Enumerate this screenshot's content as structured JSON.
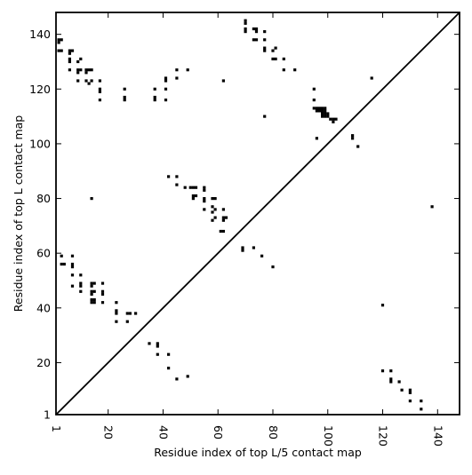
{
  "chart_data": {
    "type": "scatter",
    "title": "",
    "xlabel": "Residue index of top L/5 contact map",
    "ylabel": "Residue index of top L contact map",
    "xlim": [
      1,
      148
    ],
    "ylim": [
      1,
      148
    ],
    "xticks": [
      1,
      20,
      40,
      60,
      80,
      100,
      120,
      140
    ],
    "yticks": [
      1,
      20,
      40,
      60,
      80,
      100,
      120,
      140
    ],
    "grid": false,
    "diagonal": true,
    "colors": {
      "points": "#000000",
      "axes": "#000000",
      "background": "#ffffff"
    },
    "upper_points": [
      [
        2,
        137
      ],
      [
        2,
        138
      ],
      [
        3,
        138
      ],
      [
        2,
        134
      ],
      [
        3,
        134
      ],
      [
        6,
        134
      ],
      [
        7,
        134
      ],
      [
        6,
        133
      ],
      [
        6,
        131
      ],
      [
        6,
        130
      ],
      [
        6,
        127
      ],
      [
        9,
        130
      ],
      [
        10,
        131
      ],
      [
        9,
        127
      ],
      [
        10,
        127
      ],
      [
        9,
        126
      ],
      [
        9,
        123
      ],
      [
        12,
        127
      ],
      [
        13,
        127
      ],
      [
        14,
        127
      ],
      [
        12,
        126
      ],
      [
        12,
        123
      ],
      [
        13,
        122
      ],
      [
        14,
        123
      ],
      [
        17,
        123
      ],
      [
        17,
        120
      ],
      [
        17,
        119
      ],
      [
        17,
        116
      ],
      [
        26,
        120
      ],
      [
        26,
        117
      ],
      [
        26,
        116
      ],
      [
        37,
        120
      ],
      [
        37,
        117
      ],
      [
        37,
        116
      ],
      [
        41,
        124
      ],
      [
        41,
        123
      ],
      [
        41,
        120
      ],
      [
        41,
        116
      ],
      [
        45,
        127
      ],
      [
        45,
        124
      ],
      [
        49,
        127
      ],
      [
        62,
        123
      ],
      [
        70,
        145
      ],
      [
        70,
        144
      ],
      [
        70,
        142
      ],
      [
        70,
        141
      ],
      [
        73,
        142
      ],
      [
        74,
        142
      ],
      [
        74,
        141
      ],
      [
        73,
        138
      ],
      [
        74,
        138
      ],
      [
        77,
        141
      ],
      [
        77,
        138
      ],
      [
        77,
        135
      ],
      [
        77,
        134
      ],
      [
        81,
        135
      ],
      [
        80,
        134
      ],
      [
        80,
        131
      ],
      [
        81,
        131
      ],
      [
        84,
        131
      ],
      [
        84,
        127
      ],
      [
        88,
        127
      ],
      [
        77,
        110
      ],
      [
        95,
        120
      ],
      [
        95,
        116
      ],
      [
        95,
        113
      ],
      [
        96,
        113
      ],
      [
        97,
        113
      ],
      [
        98,
        113
      ],
      [
        99,
        113
      ],
      [
        96,
        112
      ],
      [
        97,
        112
      ],
      [
        98,
        112
      ],
      [
        99,
        112
      ],
      [
        98,
        111
      ],
      [
        99,
        111
      ],
      [
        98,
        110
      ],
      [
        99,
        110
      ],
      [
        100,
        111
      ],
      [
        100,
        110
      ],
      [
        101,
        109
      ],
      [
        102,
        109
      ],
      [
        103,
        109
      ],
      [
        102,
        108
      ],
      [
        96,
        102
      ],
      [
        109,
        103
      ],
      [
        109,
        102
      ],
      [
        111,
        99
      ],
      [
        116,
        124
      ]
    ],
    "lower_points": [
      [
        3,
        59
      ],
      [
        3,
        56
      ],
      [
        4,
        56
      ],
      [
        7,
        59
      ],
      [
        7,
        56
      ],
      [
        7,
        55
      ],
      [
        7,
        52
      ],
      [
        7,
        48
      ],
      [
        10,
        52
      ],
      [
        10,
        49
      ],
      [
        10,
        48
      ],
      [
        10,
        46
      ],
      [
        14,
        49
      ],
      [
        15,
        49
      ],
      [
        14,
        48
      ],
      [
        14,
        46
      ],
      [
        15,
        46
      ],
      [
        14,
        45
      ],
      [
        14,
        43
      ],
      [
        15,
        43
      ],
      [
        14,
        42
      ],
      [
        15,
        42
      ],
      [
        18,
        49
      ],
      [
        18,
        46
      ],
      [
        18,
        45
      ],
      [
        18,
        42
      ],
      [
        14,
        80
      ],
      [
        23,
        42
      ],
      [
        23,
        39
      ],
      [
        23,
        38
      ],
      [
        23,
        35
      ],
      [
        27,
        38
      ],
      [
        28,
        38
      ],
      [
        30,
        38
      ],
      [
        27,
        35
      ],
      [
        35,
        27
      ],
      [
        38,
        27
      ],
      [
        38,
        26
      ],
      [
        38,
        23
      ],
      [
        42,
        23
      ],
      [
        42,
        18
      ],
      [
        45,
        14
      ],
      [
        49,
        15
      ],
      [
        42,
        88
      ],
      [
        45,
        88
      ],
      [
        45,
        85
      ],
      [
        48,
        84
      ],
      [
        50,
        84
      ],
      [
        51,
        84
      ],
      [
        52,
        84
      ],
      [
        51,
        81
      ],
      [
        52,
        81
      ],
      [
        51,
        80
      ],
      [
        55,
        84
      ],
      [
        55,
        83
      ],
      [
        55,
        80
      ],
      [
        55,
        79
      ],
      [
        55,
        76
      ],
      [
        58,
        80
      ],
      [
        59,
        80
      ],
      [
        58,
        77
      ],
      [
        59,
        76
      ],
      [
        58,
        75
      ],
      [
        59,
        73
      ],
      [
        58,
        72
      ],
      [
        62,
        76
      ],
      [
        62,
        73
      ],
      [
        63,
        73
      ],
      [
        62,
        72
      ],
      [
        61,
        68
      ],
      [
        62,
        68
      ],
      [
        69,
        62
      ],
      [
        69,
        61
      ],
      [
        73,
        62
      ],
      [
        76,
        59
      ],
      [
        80,
        55
      ],
      [
        120,
        41
      ],
      [
        120,
        17
      ],
      [
        123,
        17
      ],
      [
        123,
        14
      ],
      [
        123,
        13
      ],
      [
        126,
        13
      ],
      [
        127,
        10
      ],
      [
        130,
        10
      ],
      [
        130,
        9
      ],
      [
        130,
        6
      ],
      [
        134,
        6
      ],
      [
        134,
        3
      ],
      [
        138,
        77
      ]
    ]
  }
}
